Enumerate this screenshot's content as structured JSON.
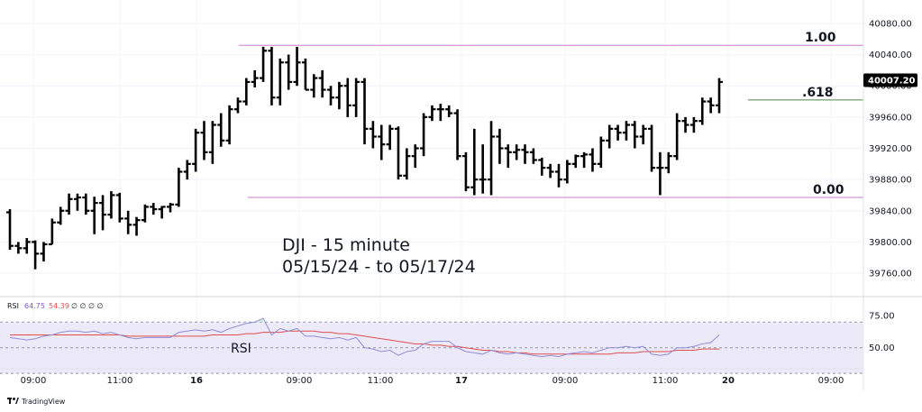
{
  "chart_data": {
    "type": "ohlc",
    "price_scale": {
      "ticks": [
        "40080.00",
        "40040.00",
        "40000.00",
        "39960.00",
        "39920.00",
        "39880.00",
        "39840.00",
        "39800.00",
        "39760.00"
      ],
      "tick_values": [
        40080,
        40040,
        40000,
        39960,
        39920,
        39880,
        39840,
        39800,
        39760
      ],
      "ylim": [
        39730,
        40110
      ]
    },
    "time_axis": {
      "labels": [
        "09:00",
        "11:00",
        "16",
        "09:00",
        "11:00",
        "17",
        "09:00",
        "11:00",
        "20",
        "09:00"
      ]
    },
    "last_price": {
      "label": "40007.20",
      "value": 40007.2
    },
    "annotation": {
      "line1": "DJI - 15 minute",
      "line2": "05/15/24 - to 05/17/24"
    },
    "fib_levels": [
      {
        "label": "1.00",
        "value": 40052
      },
      {
        "label": ".618",
        "value": 39982
      },
      {
        "label": "0.00",
        "value": 39857
      }
    ],
    "bars": [
      [
        39838,
        39842,
        39790,
        39795
      ],
      [
        39795,
        39800,
        39785,
        39792
      ],
      [
        39792,
        39805,
        39785,
        39800
      ],
      [
        39800,
        39802,
        39765,
        39785
      ],
      [
        39785,
        39800,
        39775,
        39797
      ],
      [
        39797,
        39830,
        39797,
        39825
      ],
      [
        39825,
        39845,
        39822,
        39840
      ],
      [
        39840,
        39862,
        39835,
        39855
      ],
      [
        39855,
        39862,
        39840,
        39857
      ],
      [
        39857,
        39862,
        39835,
        39840
      ],
      [
        39840,
        39858,
        39810,
        39850
      ],
      [
        39850,
        39860,
        39815,
        39835
      ],
      [
        39835,
        39865,
        39830,
        39860
      ],
      [
        39860,
        39863,
        39825,
        39830
      ],
      [
        39830,
        39840,
        39810,
        39822
      ],
      [
        39822,
        39832,
        39808,
        39828
      ],
      [
        39828,
        39848,
        39825,
        39845
      ],
      [
        39845,
        39850,
        39835,
        39842
      ],
      [
        39842,
        39846,
        39830,
        39845
      ],
      [
        39845,
        39850,
        39838,
        39848
      ],
      [
        39848,
        39895,
        39845,
        39890
      ],
      [
        39890,
        39905,
        39880,
        39900
      ],
      [
        39900,
        39945,
        39890,
        39940
      ],
      [
        39940,
        39955,
        39905,
        39915
      ],
      [
        39915,
        39955,
        39900,
        39950
      ],
      [
        39950,
        39965,
        39922,
        39930
      ],
      [
        39930,
        39975,
        39925,
        39970
      ],
      [
        39970,
        39985,
        39965,
        39980
      ],
      [
        39980,
        40010,
        39975,
        40005
      ],
      [
        40005,
        40020,
        39998,
        40010
      ],
      [
        40010,
        40050,
        40005,
        40045
      ],
      [
        40045,
        40050,
        39975,
        39985
      ],
      [
        39985,
        40035,
        39975,
        40030
      ],
      [
        40030,
        40040,
        39995,
        40005
      ],
      [
        40005,
        40050,
        40000,
        40030
      ],
      [
        40030,
        40035,
        39995,
        39995
      ],
      [
        39995,
        40015,
        39985,
        40010
      ],
      [
        40010,
        40020,
        39985,
        39995
      ],
      [
        39995,
        40000,
        39975,
        39985
      ],
      [
        39985,
        40005,
        39970,
        40000
      ],
      [
        40000,
        40010,
        39960,
        39975
      ],
      [
        39975,
        40010,
        39960,
        40005
      ],
      [
        40005,
        40010,
        39925,
        39945
      ],
      [
        39945,
        39955,
        39920,
        39935
      ],
      [
        39935,
        39950,
        39905,
        39925
      ],
      [
        39925,
        39950,
        39918,
        39945
      ],
      [
        39945,
        39948,
        39880,
        39885
      ],
      [
        39885,
        39920,
        39880,
        39910
      ],
      [
        39910,
        39925,
        39895,
        39920
      ],
      [
        39920,
        39965,
        39910,
        39960
      ],
      [
        39960,
        39975,
        39955,
        39970
      ],
      [
        39970,
        39977,
        39955,
        39970
      ],
      [
        39970,
        39975,
        39960,
        39965
      ],
      [
        39965,
        39970,
        39905,
        39910
      ],
      [
        39910,
        39915,
        39865,
        39870
      ],
      [
        39870,
        39945,
        39860,
        39880
      ],
      [
        39880,
        39925,
        39862,
        39880
      ],
      [
        39880,
        39955,
        39860,
        39935
      ],
      [
        39935,
        39945,
        39900,
        39920
      ],
      [
        39920,
        39925,
        39895,
        39915
      ],
      [
        39915,
        39925,
        39905,
        39918
      ],
      [
        39918,
        39925,
        39900,
        39915
      ],
      [
        39915,
        39920,
        39900,
        39905
      ],
      [
        39905,
        39908,
        39885,
        39895
      ],
      [
        39895,
        39900,
        39882,
        39890
      ],
      [
        39890,
        39900,
        39870,
        39880
      ],
      [
        39880,
        39905,
        39875,
        39900
      ],
      [
        39900,
        39912,
        39895,
        39910
      ],
      [
        39910,
        39915,
        39895,
        39912
      ],
      [
        39912,
        39920,
        39890,
        39900
      ],
      [
        39900,
        39935,
        39895,
        39930
      ],
      [
        39930,
        39950,
        39920,
        39945
      ],
      [
        39945,
        39950,
        39930,
        39940
      ],
      [
        39940,
        39955,
        39930,
        39950
      ],
      [
        39950,
        39955,
        39920,
        39935
      ],
      [
        39935,
        39950,
        39925,
        39945
      ],
      [
        39945,
        39950,
        39890,
        39895
      ],
      [
        39895,
        39915,
        39860,
        39895
      ],
      [
        39895,
        39915,
        39888,
        39910
      ],
      [
        39910,
        39965,
        39905,
        39955
      ],
      [
        39955,
        39960,
        39940,
        39950
      ],
      [
        39950,
        39960,
        39940,
        39955
      ],
      [
        39955,
        39985,
        39950,
        39980
      ],
      [
        39980,
        39985,
        39965,
        39975
      ],
      [
        39975,
        40010,
        39965,
        40005
      ]
    ],
    "rsi": {
      "legend_label": "RSI",
      "legend_value_1": "64.75",
      "legend_value_2": "54.39",
      "legend_extra": "∅ ∅ ∅ ∅",
      "panel_label": "RSI",
      "ticks": [
        "75.00",
        "50.00"
      ],
      "tick_values": [
        75,
        50
      ],
      "ylim": [
        35,
        85
      ],
      "band": [
        30,
        70
      ],
      "rsi_values": [
        58,
        57,
        56,
        57,
        59,
        60,
        62,
        63,
        63,
        62,
        63,
        61,
        62,
        60,
        58,
        57,
        58,
        58,
        58,
        58,
        62,
        63,
        64,
        63,
        64,
        62,
        65,
        67,
        69,
        70,
        73,
        60,
        65,
        63,
        65,
        59,
        59,
        58,
        57,
        58,
        56,
        58,
        50,
        49,
        47,
        48,
        44,
        47,
        48,
        53,
        55,
        55,
        55,
        50,
        47,
        46,
        45,
        48,
        46,
        45,
        46,
        45,
        44,
        43,
        44,
        43,
        45,
        46,
        47,
        46,
        48,
        50,
        50,
        51,
        50,
        51,
        45,
        44,
        45,
        50,
        50,
        51,
        53,
        54,
        60
      ],
      "ma_values": [
        60,
        60,
        60,
        60,
        60,
        60,
        60,
        60,
        60,
        60,
        60,
        60,
        60,
        60,
        59,
        59,
        59,
        59,
        59,
        59,
        59,
        59,
        59,
        59,
        60,
        60,
        60,
        60,
        61,
        61,
        62,
        62,
        62,
        63,
        63,
        63,
        63,
        62,
        62,
        61,
        61,
        60,
        59,
        58,
        57,
        56,
        55,
        54,
        53,
        53,
        52,
        52,
        51,
        51,
        50,
        49,
        48,
        48,
        47,
        47,
        46,
        46,
        45,
        45,
        45,
        45,
        45,
        45,
        45,
        45,
        45,
        45,
        46,
        46,
        46,
        47,
        47,
        47,
        47,
        48,
        48,
        48,
        49,
        49,
        49
      ]
    }
  },
  "branding": {
    "text": "TradingView"
  },
  "colors": {
    "bars": "#000000",
    "fib_line": "#c77ec9",
    "fib_618": "#4a8a4a",
    "rsi_line": "#8f8fd6",
    "rsi_ma": "#e05050",
    "rsi_band": "#ece9f8",
    "price_badge": "#000000"
  }
}
